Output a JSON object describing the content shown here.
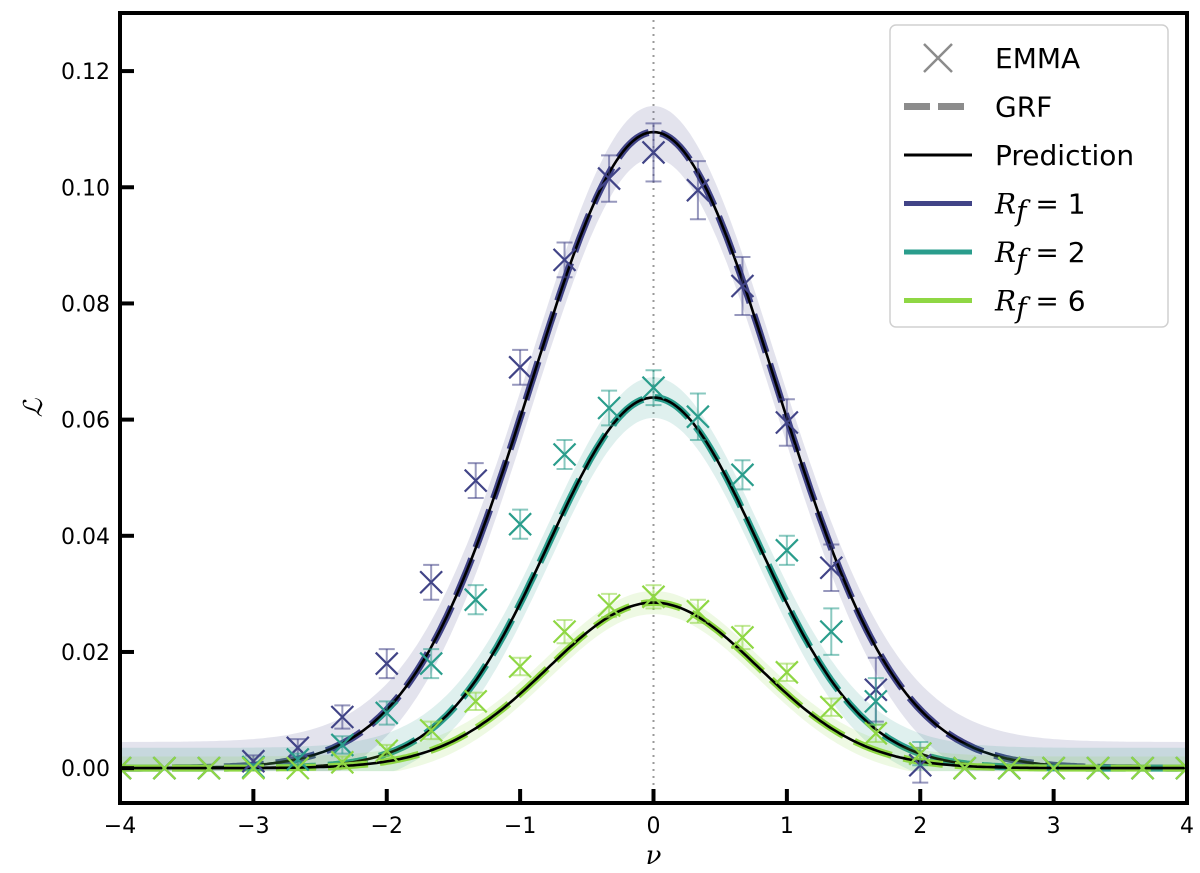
{
  "chart_data": {
    "type": "line",
    "xlabel": "ν",
    "ylabel": "ℒ",
    "xlim": [
      -4,
      4
    ],
    "ylim": [
      -0.006,
      0.13
    ],
    "x_ticks": [
      -4,
      -3,
      -2,
      -1,
      0,
      1,
      2,
      3,
      4
    ],
    "x_tick_labels": [
      "−4",
      "−3",
      "−2",
      "−1",
      "0",
      "1",
      "2",
      "3",
      "4"
    ],
    "y_ticks": [
      0.0,
      0.02,
      0.04,
      0.06,
      0.08,
      0.1,
      0.12
    ],
    "y_tick_labels": [
      "0.00",
      "0.02",
      "0.04",
      "0.06",
      "0.08",
      "0.10",
      "0.12"
    ],
    "vertical_reference_line": 0,
    "grid": false,
    "legend_position": "top-right",
    "legend": [
      {
        "label": "EMMA",
        "style": "marker-x",
        "color": "#8c8c8c"
      },
      {
        "label": "GRF",
        "style": "dashed",
        "color": "#8c8c8c"
      },
      {
        "label": "Prediction",
        "style": "solid",
        "color": "#000000"
      },
      {
        "label_prefix": "R",
        "label_sub": "f",
        "label_suffix": " = 1",
        "style": "solid",
        "color": "#414487"
      },
      {
        "label_prefix": "R",
        "label_sub": "f",
        "label_suffix": " = 2",
        "style": "solid",
        "color": "#2a9d8c"
      },
      {
        "label_prefix": "R",
        "label_sub": "f",
        "label_suffix": " = 6",
        "style": "solid",
        "color": "#8fd744"
      }
    ],
    "series": [
      {
        "name": "R_f = 1",
        "color": "#414487",
        "amplitude": 0.1095,
        "sigma": 0.915,
        "emma_x": [
          -4,
          -3.667,
          -3.333,
          -3,
          -2.667,
          -2.333,
          -2,
          -1.667,
          -1.333,
          -1,
          -0.667,
          -0.333,
          0,
          0.333,
          0.667,
          1,
          1.333,
          1.667,
          2,
          2.333,
          2.667,
          3,
          3.333,
          3.667,
          4
        ],
        "emma_y": [
          0.0,
          0.0,
          0.0,
          0.0012,
          0.0035,
          0.0088,
          0.018,
          0.032,
          0.0495,
          0.069,
          0.0875,
          0.1015,
          0.106,
          0.0995,
          0.083,
          0.0595,
          0.0345,
          0.0135,
          0.0005,
          0.0,
          0.0,
          0.0,
          0.0,
          0.0,
          0.0
        ],
        "emma_err": [
          0.0,
          0.0,
          0.0,
          0.001,
          0.0015,
          0.002,
          0.0025,
          0.003,
          0.003,
          0.003,
          0.003,
          0.004,
          0.005,
          0.005,
          0.005,
          0.004,
          0.004,
          0.0055,
          0.003,
          0.0,
          0.0,
          0.0,
          0.0,
          0.0,
          0.0
        ],
        "band_halfwidth": 0.0045
      },
      {
        "name": "R_f = 2",
        "color": "#2a9d8c",
        "amplitude": 0.0638,
        "sigma": 0.785,
        "emma_x": [
          -4,
          -3.667,
          -3.333,
          -3,
          -2.667,
          -2.333,
          -2,
          -1.667,
          -1.333,
          -1,
          -0.667,
          -0.333,
          0,
          0.333,
          0.667,
          1,
          1.333,
          1.667,
          2,
          2.333,
          2.667,
          3,
          3.333,
          3.667,
          4
        ],
        "emma_y": [
          0.0,
          0.0,
          0.0,
          0.0002,
          0.0015,
          0.004,
          0.0095,
          0.018,
          0.029,
          0.042,
          0.054,
          0.062,
          0.0655,
          0.0605,
          0.0505,
          0.0375,
          0.0235,
          0.0115,
          0.0025,
          0.0,
          0.0,
          0.0,
          0.0,
          0.0,
          0.0
        ],
        "emma_err": [
          0.0,
          0.0,
          0.0,
          0.0005,
          0.001,
          0.0015,
          0.002,
          0.0025,
          0.0025,
          0.0025,
          0.0025,
          0.003,
          0.003,
          0.004,
          0.0025,
          0.0025,
          0.004,
          0.004,
          0.002,
          0.0,
          0.0,
          0.0,
          0.0,
          0.0,
          0.0
        ],
        "band_halfwidth": 0.0035
      },
      {
        "name": "R_f = 6",
        "color": "#8fd744",
        "amplitude": 0.0285,
        "sigma": 0.79,
        "emma_x": [
          -4,
          -3.667,
          -3.333,
          -3,
          -2.667,
          -2.333,
          -2,
          -1.667,
          -1.333,
          -1,
          -0.667,
          -0.333,
          0,
          0.333,
          0.667,
          1,
          1.333,
          1.667,
          2,
          2.333,
          2.667,
          3,
          3.333,
          3.667,
          4
        ],
        "emma_y": [
          0.0,
          0.0,
          0.0,
          0.0,
          0.0,
          0.001,
          0.003,
          0.0065,
          0.0115,
          0.0175,
          0.0235,
          0.028,
          0.0295,
          0.027,
          0.0225,
          0.0165,
          0.0105,
          0.006,
          0.0025,
          0.0,
          0.0,
          0.0,
          0.0,
          0.0,
          0.0
        ],
        "emma_err": [
          0.0,
          0.0,
          0.0,
          0.0,
          0.0,
          0.001,
          0.001,
          0.0015,
          0.0015,
          0.0015,
          0.002,
          0.002,
          0.002,
          0.002,
          0.002,
          0.0015,
          0.0015,
          0.0015,
          0.001,
          0.0,
          0.0,
          0.0,
          0.0,
          0.0,
          0.0
        ],
        "band_halfwidth": 0.002
      }
    ]
  }
}
